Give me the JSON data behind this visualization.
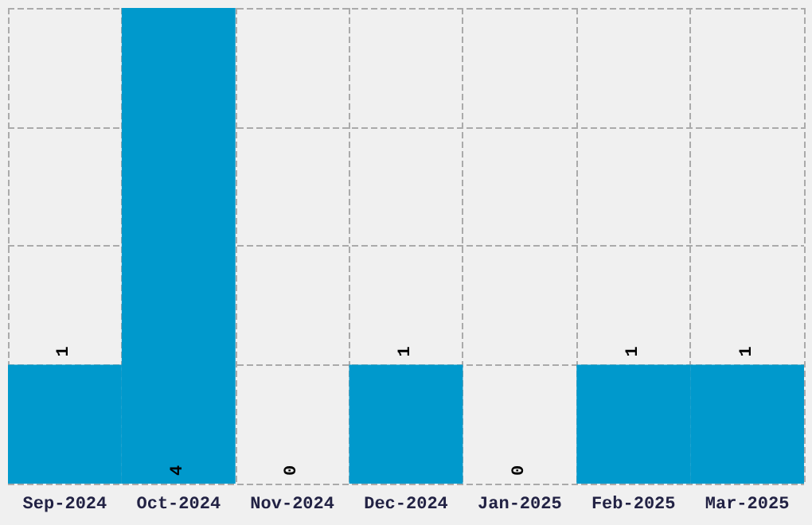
{
  "chart_data": {
    "type": "bar",
    "categories": [
      "Sep-2024",
      "Oct-2024",
      "Nov-2024",
      "Dec-2024",
      "Jan-2025",
      "Feb-2025",
      "Mar-2025"
    ],
    "values": [
      1,
      4,
      0,
      1,
      0,
      1,
      1
    ],
    "color": "#0099cc",
    "data_labels": true,
    "grid": true,
    "tick_labels": "x"
  }
}
